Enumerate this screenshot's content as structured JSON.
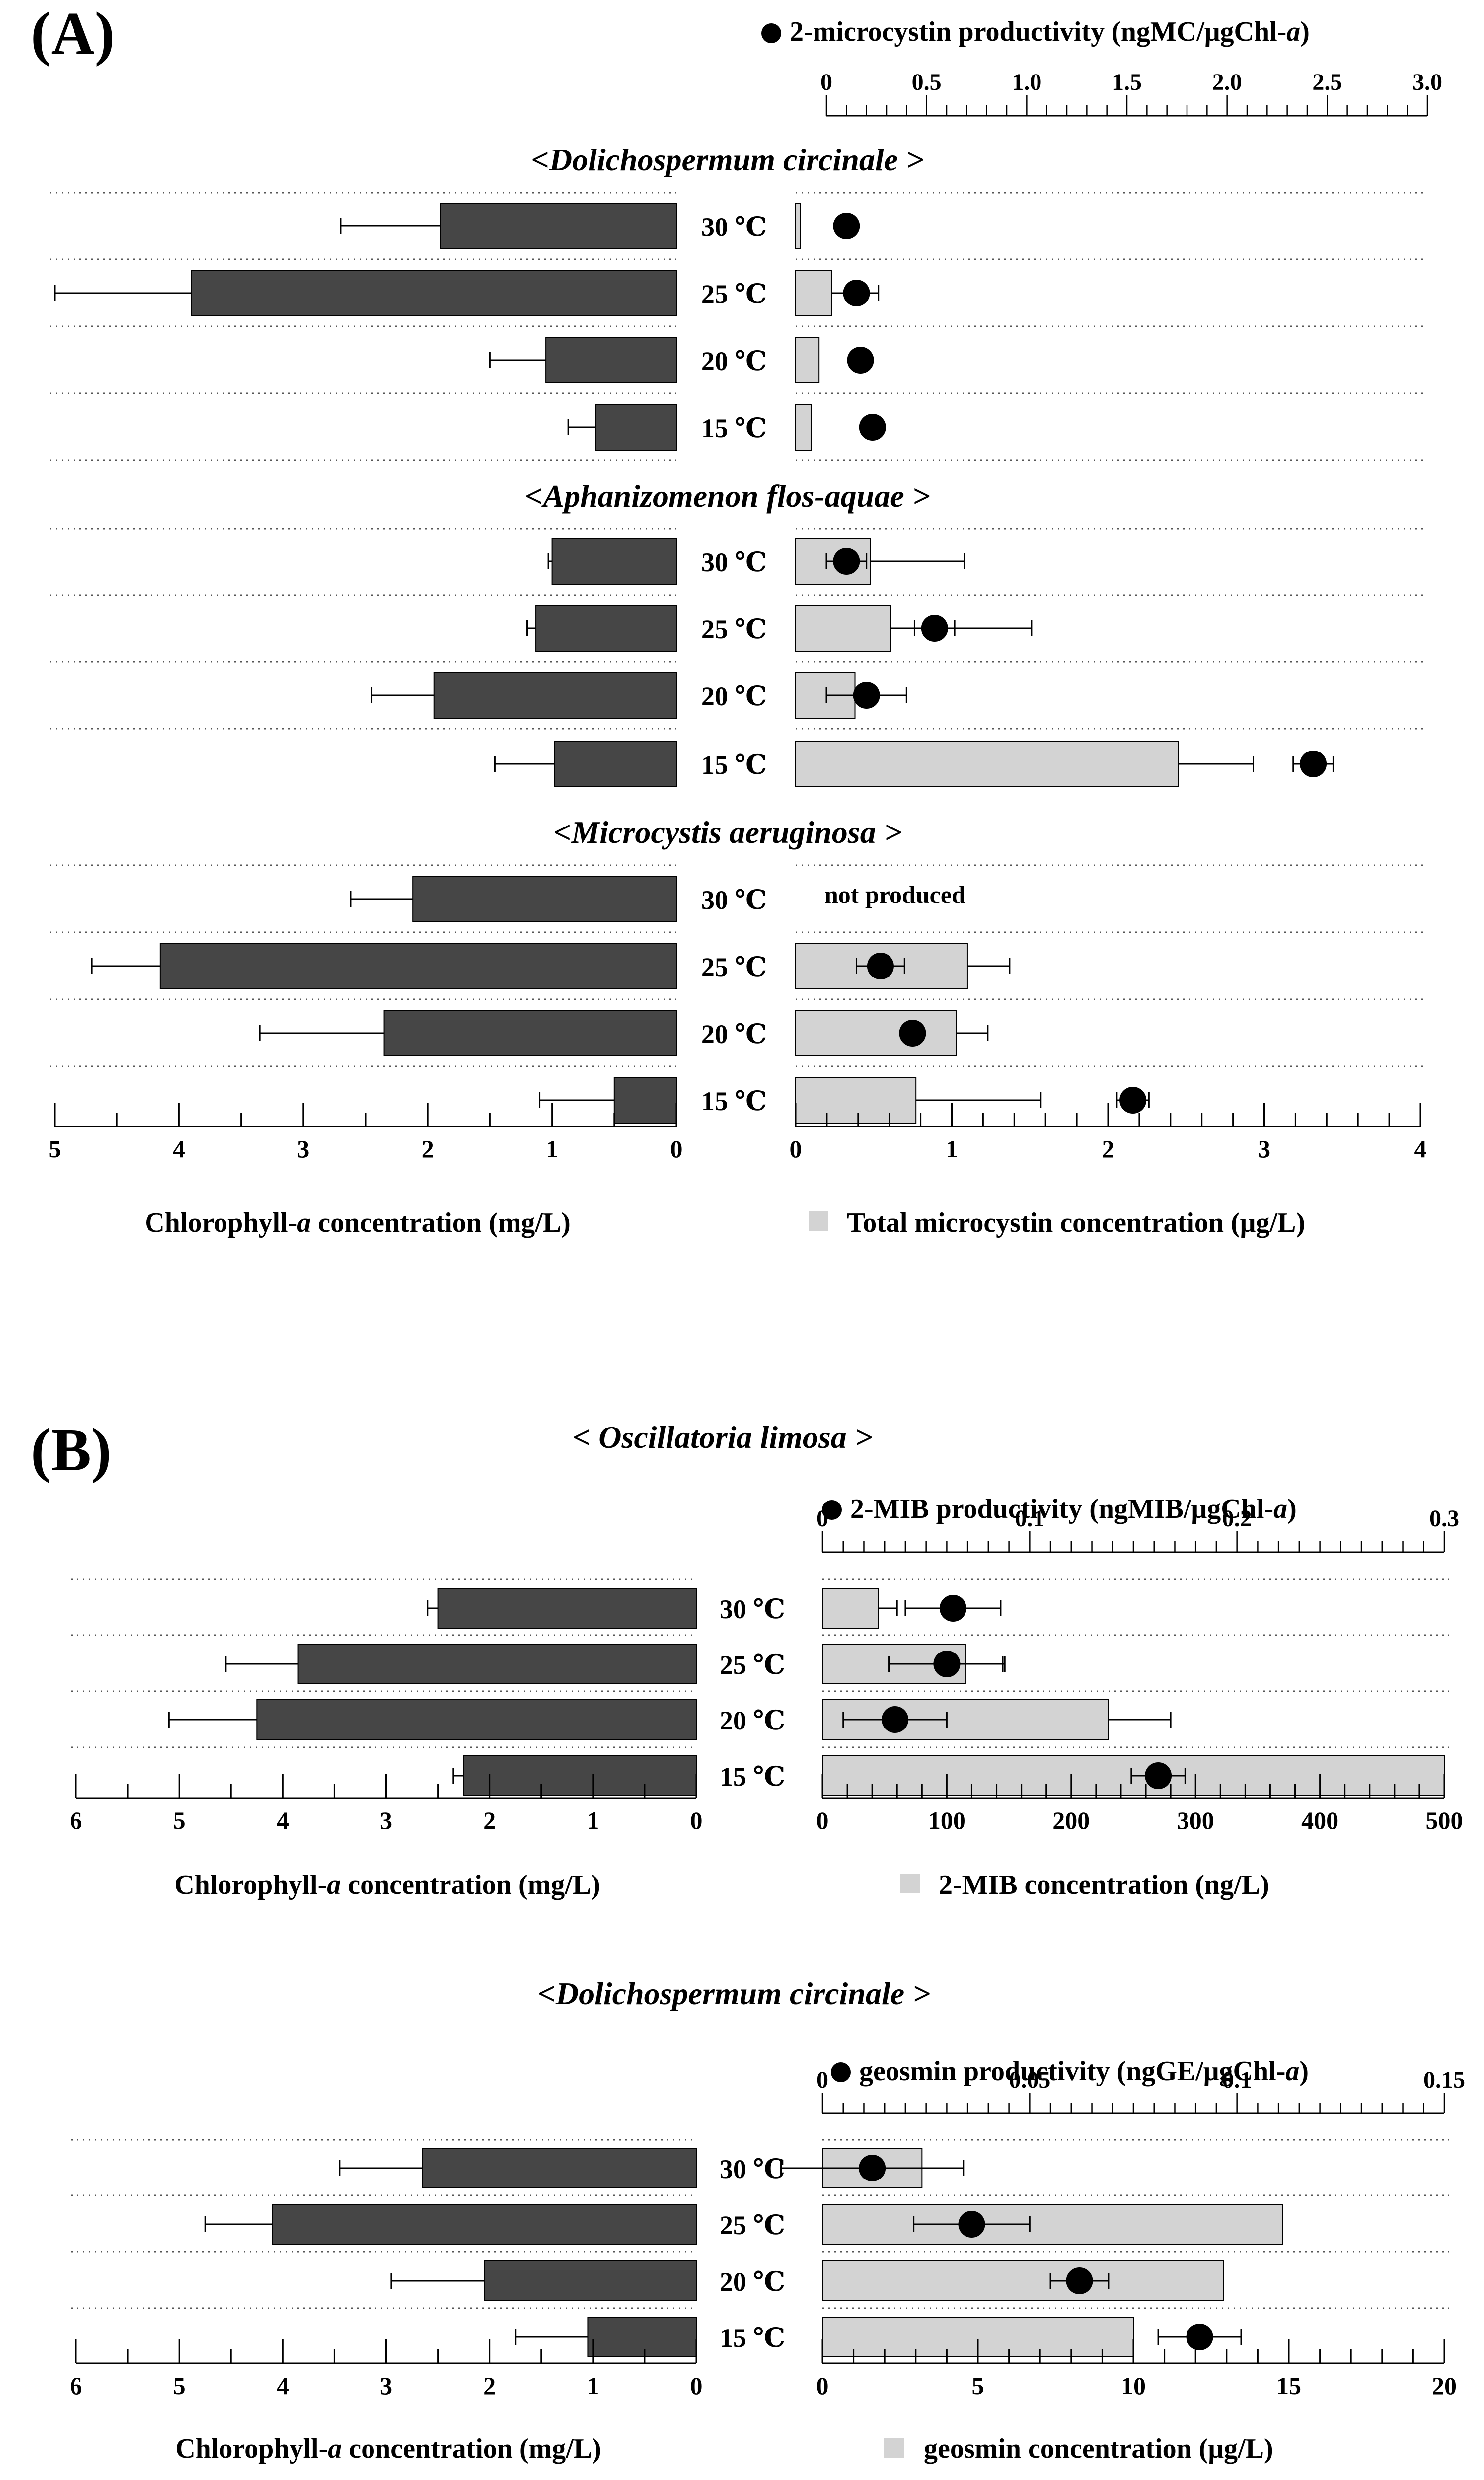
{
  "panel_labels": [
    "(A)",
    "(B)"
  ],
  "panelA": {
    "top_axis_label_prefix": "2-microcystin productivity (ngMC/μgChl-",
    "top_axis_label_italic": "a",
    "top_axis_label_suffix": ")",
    "left_axis_label_prefix": "Chlorophyll-",
    "left_axis_label_italic": "a",
    "left_axis_label_suffix": " concentration (mg/L)",
    "right_axis_label": "Total microcystin concentration (μg/L)",
    "not_produced": "not produced",
    "species": [
      "<Dolichospermum circinale >",
      "<Aphanizomenon flos-aquae >",
      "<Microcystis aeruginosa >"
    ]
  },
  "panelB": {
    "title1": "< Oscillatoria limosa >",
    "title2": "<Dolichospermum circinale >",
    "b1_top_label_prefix": "2-MIB productivity (ngMIB/μgChl-",
    "b1_top_label_italic": "a",
    "b1_top_label_suffix": ")",
    "b1_right_label": "2-MIB concentration (ng/L)",
    "b2_top_label_prefix": "geosmin productivity (ngGE/μgChl-",
    "b2_top_label_italic": "a",
    "b2_top_label_suffix": ")",
    "b2_right_label": "geosmin concentration (μg/L)",
    "left_label_prefix": "Chlorophyll-",
    "left_label_italic": "a",
    "left_label_suffix": " concentration (mg/L)"
  },
  "colors": {
    "chl_bar": "#464646",
    "conc_bar": "#d3d3d3",
    "marker": "#000000"
  },
  "chart_data": [
    {
      "type": "bar",
      "title": "<Dolichospermum circinale >",
      "categories": [
        "30 ℃",
        "25 ℃",
        "20 ℃",
        "15 ℃"
      ],
      "series": [
        {
          "name": "Chlorophyll-a concentration (mg/L)",
          "values": [
            1.9,
            3.9,
            1.05,
            0.65
          ],
          "errors": [
            0.8,
            1.1,
            0.45,
            0.22
          ],
          "xlim": [
            0,
            5
          ]
        },
        {
          "name": "Total microcystin concentration (μg/L)",
          "values": [
            0.03,
            0.23,
            0.15,
            0.1
          ],
          "errors": [
            0,
            0.3,
            0,
            0
          ],
          "xlim": [
            0,
            4
          ]
        },
        {
          "name": "2-microcystin productivity (ngMC/μgChl-a)",
          "values": [
            0.1,
            0.15,
            0.17,
            0.23
          ],
          "errors": [
            0,
            0,
            0,
            0
          ],
          "xlim": [
            0,
            3
          ]
        }
      ]
    },
    {
      "type": "bar",
      "title": "<Aphanizomenon flos-aquae >",
      "categories": [
        "30 ℃",
        "25 ℃",
        "20 ℃",
        "15 ℃"
      ],
      "series": [
        {
          "name": "Chlorophyll-a concentration (mg/L)",
          "values": [
            1.0,
            1.13,
            1.95,
            0.98
          ],
          "errors": [
            0.03,
            0.07,
            0.5,
            0.48
          ],
          "xlim": [
            0,
            5
          ]
        },
        {
          "name": "Total microcystin concentration (μg/L)",
          "values": [
            0.48,
            0.61,
            0.38,
            2.45
          ],
          "errors": [
            0.6,
            0.9,
            0,
            0.48
          ],
          "xlim": [
            0,
            4
          ]
        },
        {
          "name": "2-microcystin productivity (ngMC/μgChl-a)",
          "values": [
            0.1,
            0.54,
            0.2,
            2.43
          ],
          "errors": [
            0.1,
            0.1,
            0.2,
            0.1
          ],
          "xlim": [
            0,
            3
          ]
        }
      ]
    },
    {
      "type": "bar",
      "title": "<Microcystis aeruginosa >",
      "categories": [
        "30 ℃",
        "25 ℃",
        "20 ℃",
        "15 ℃"
      ],
      "series": [
        {
          "name": "Chlorophyll-a concentration (mg/L)",
          "values": [
            2.12,
            4.15,
            2.35,
            0.5
          ],
          "errors": [
            0.5,
            0.55,
            1.0,
            0.6
          ],
          "xlim": [
            0,
            5
          ]
        },
        {
          "name": "Total microcystin concentration (μg/L)",
          "values": [
            null,
            1.1,
            1.03,
            0.77
          ],
          "errors": [
            0,
            0.27,
            0.2,
            0.8
          ],
          "xlim": [
            0,
            4
          ]
        },
        {
          "name": "2-microcystin productivity (ngMC/μgChl-a)",
          "values": [
            null,
            0.27,
            0.43,
            1.53
          ],
          "errors": [
            0,
            0.12,
            0,
            0.08
          ],
          "xlim": [
            0,
            3
          ]
        }
      ]
    },
    {
      "type": "bar",
      "title": "< Oscillatoria limosa >",
      "categories": [
        "30 ℃",
        "25 ℃",
        "20 ℃",
        "15 ℃"
      ],
      "series": [
        {
          "name": "Chlorophyll-a concentration (mg/L)",
          "values": [
            2.5,
            3.85,
            4.25,
            2.25
          ],
          "errors": [
            0.1,
            0.7,
            0.85,
            0.1
          ],
          "xlim": [
            0,
            6
          ]
        },
        {
          "name": "2-MIB concentration (ng/L)",
          "values": [
            45,
            115,
            230,
            500
          ],
          "errors": [
            15,
            30,
            50,
            0
          ],
          "xlim": [
            0,
            500
          ]
        },
        {
          "name": "2-MIB productivity (ngMIB/μgChl-a)",
          "values": [
            0.063,
            0.06,
            0.035,
            0.162
          ],
          "errors": [
            0.023,
            0.028,
            0.025,
            0.013
          ],
          "xlim": [
            0,
            0.3
          ]
        }
      ]
    },
    {
      "type": "bar",
      "title": "<Dolichospermum circinale >",
      "categories": [
        "30 ℃",
        "25 ℃",
        "20 ℃",
        "15 ℃"
      ],
      "series": [
        {
          "name": "Chlorophyll-a concentration (mg/L)",
          "values": [
            2.65,
            4.1,
            2.05,
            1.05
          ],
          "errors": [
            0.8,
            0.65,
            0.9,
            0.7
          ],
          "xlim": [
            0,
            6
          ]
        },
        {
          "name": "geosmin concentration (μg/L)",
          "values": [
            3.2,
            14.8,
            12.9,
            10
          ],
          "errors": [
            0,
            0,
            0,
            0
          ],
          "xlim": [
            0,
            20
          ]
        },
        {
          "name": "geosmin productivity (ngGE/μgChl-a)",
          "values": [
            0.012,
            0.036,
            0.062,
            0.091
          ],
          "errors": [
            0.022,
            0.014,
            0.007,
            0.01
          ],
          "xlim": [
            0,
            0.15
          ]
        }
      ]
    }
  ]
}
